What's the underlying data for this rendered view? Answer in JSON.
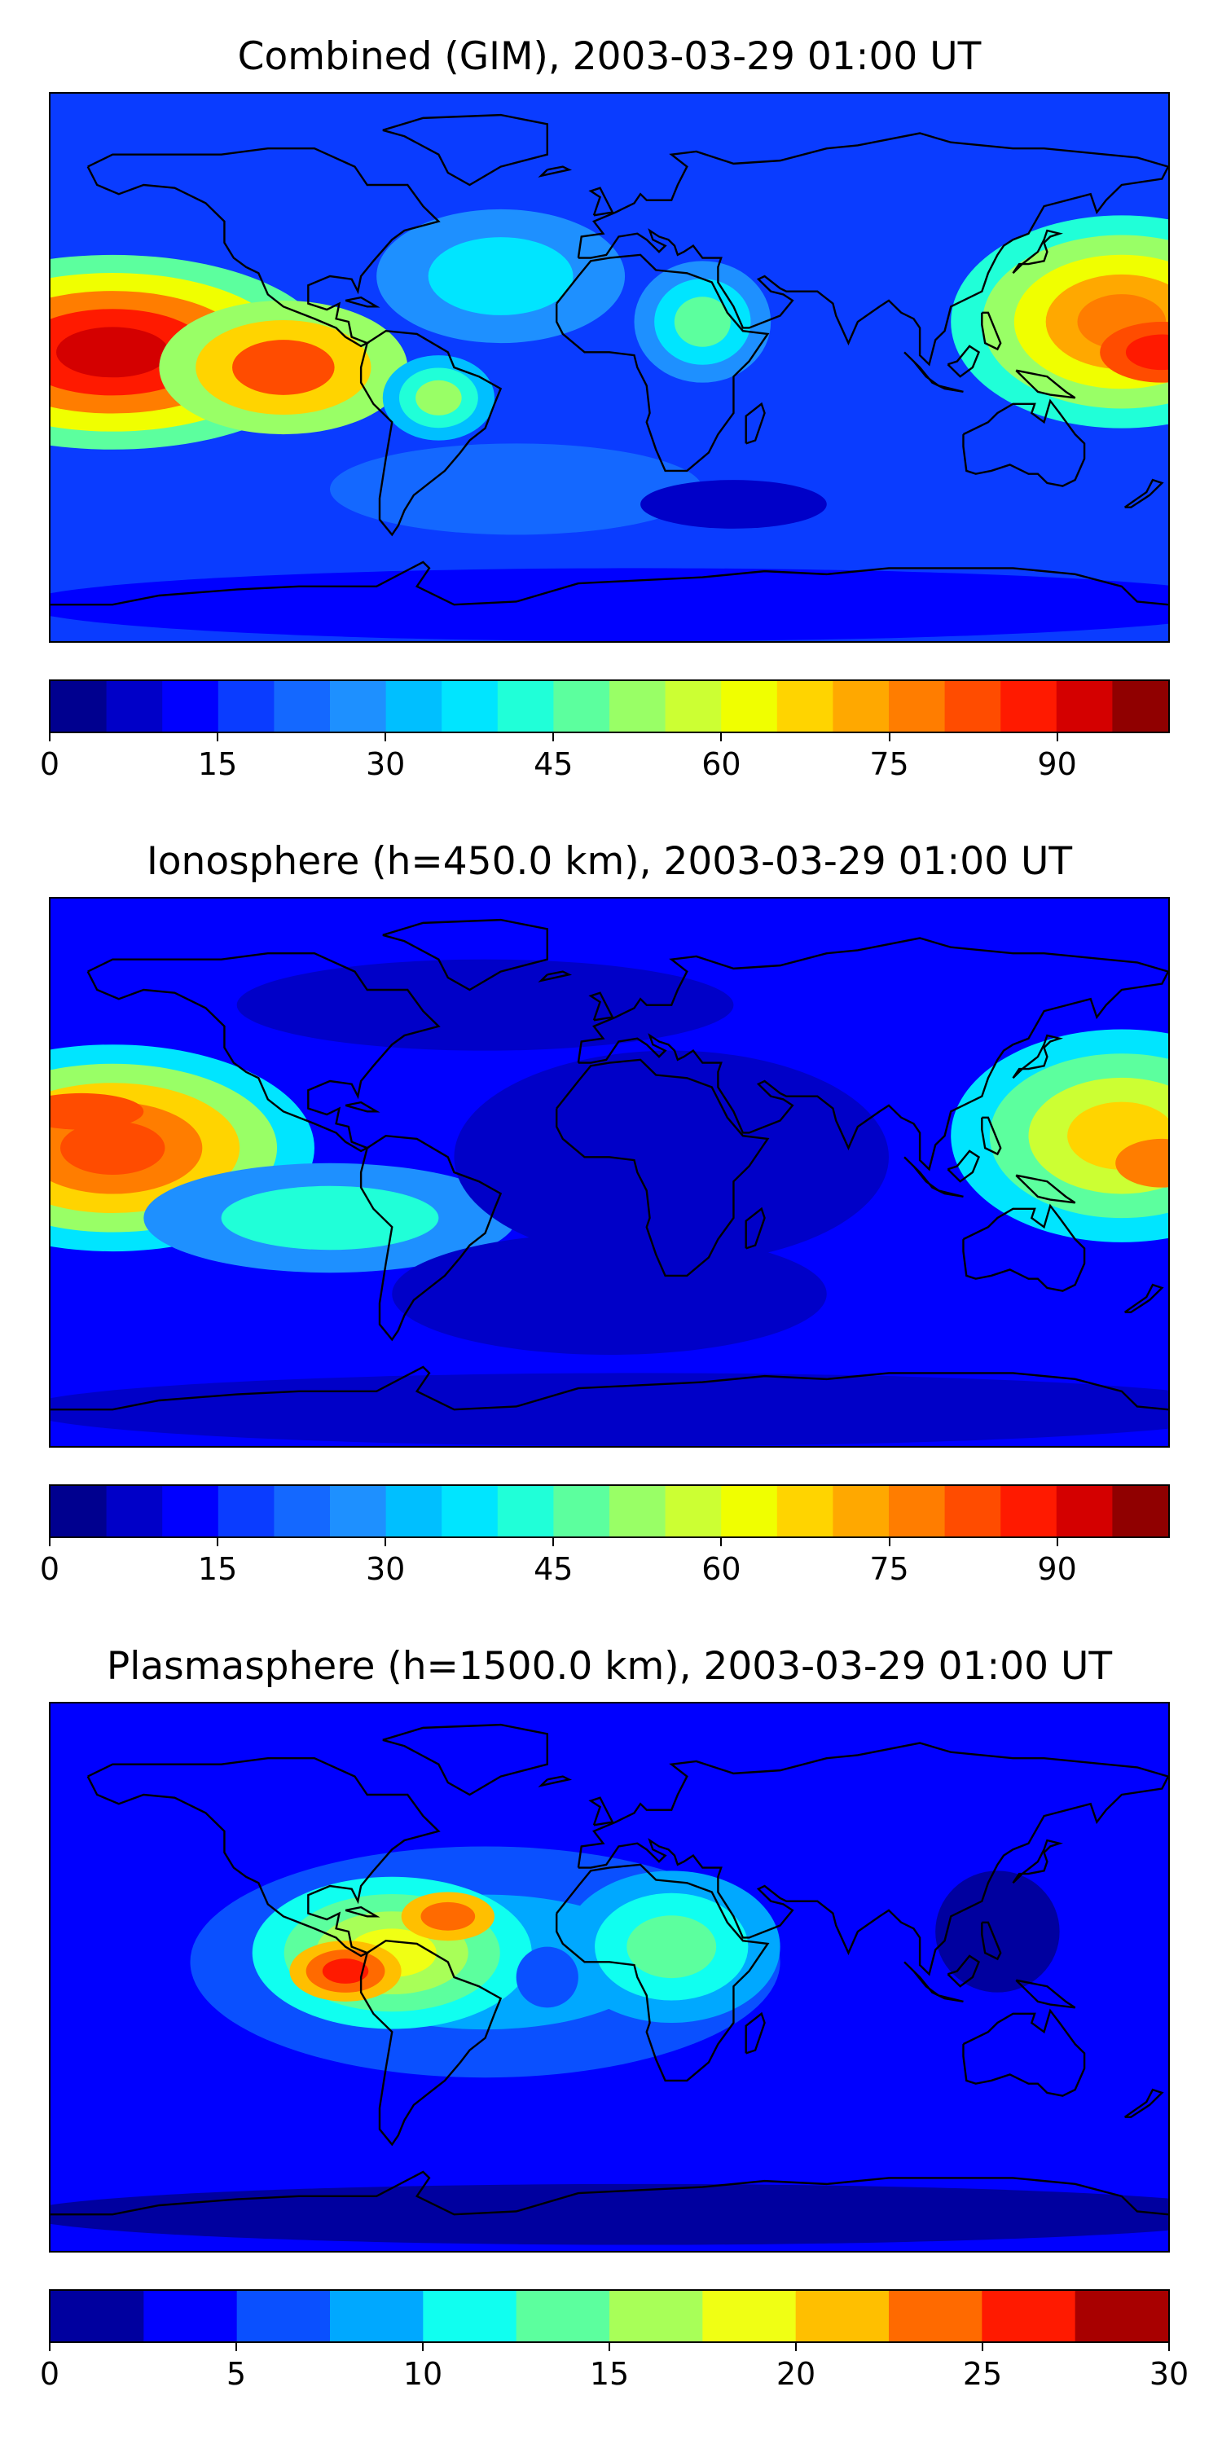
{
  "panels": [
    {
      "title": "Combined (GIM), 2003-03-29 01:00 UT",
      "colorbar": {
        "min": 0,
        "max": 100,
        "levels": 20,
        "ticks": [
          "0",
          "15",
          "30",
          "45",
          "60",
          "75",
          "90"
        ],
        "tick_values": [
          0,
          15,
          30,
          45,
          60,
          75,
          90
        ]
      },
      "background_level": 3,
      "blobs": [
        {
          "lon": -160,
          "lat": 5,
          "rx": 70,
          "ry": 32,
          "levels": [
            9,
            12,
            15,
            17,
            18
          ]
        },
        {
          "lon": -105,
          "lat": 0,
          "rx": 40,
          "ry": 22,
          "levels": [
            10,
            13,
            16
          ]
        },
        {
          "lon": -55,
          "lat": -10,
          "rx": 18,
          "ry": 14,
          "levels": [
            6,
            8,
            10
          ]
        },
        {
          "lon": -35,
          "lat": 30,
          "rx": 40,
          "ry": 22,
          "levels": [
            5,
            7
          ]
        },
        {
          "lon": 30,
          "lat": 15,
          "rx": 22,
          "ry": 20,
          "levels": [
            5,
            7,
            9
          ]
        },
        {
          "lon": 165,
          "lat": 15,
          "rx": 55,
          "ry": 35,
          "levels": [
            8,
            10,
            12,
            14,
            15
          ]
        },
        {
          "lon": 178,
          "lat": 5,
          "rx": 20,
          "ry": 10,
          "levels": [
            16,
            17
          ]
        },
        {
          "lon": -30,
          "lat": -40,
          "rx": 60,
          "ry": 15,
          "levels": [
            4
          ]
        },
        {
          "lon": 40,
          "lat": -45,
          "rx": 30,
          "ry": 8,
          "levels": [
            1
          ]
        },
        {
          "lon": 10,
          "lat": -78,
          "rx": 200,
          "ry": 12,
          "levels": [
            2
          ]
        }
      ]
    },
    {
      "title": "Ionosphere  (h=450.0 km), 2003-03-29 01:00 UT",
      "colorbar": {
        "min": 0,
        "max": 100,
        "levels": 20,
        "ticks": [
          "0",
          "15",
          "30",
          "45",
          "60",
          "75",
          "90"
        ],
        "tick_values": [
          0,
          15,
          30,
          45,
          60,
          75,
          90
        ]
      },
      "background_level": 2,
      "blobs": [
        {
          "lon": -160,
          "lat": 8,
          "rx": 65,
          "ry": 34,
          "levels": [
            7,
            10,
            13,
            15,
            16
          ]
        },
        {
          "lon": -170,
          "lat": 20,
          "rx": 20,
          "ry": 6,
          "levels": [
            16
          ]
        },
        {
          "lon": -90,
          "lat": -15,
          "rx": 60,
          "ry": 18,
          "levels": [
            5,
            8
          ]
        },
        {
          "lon": 20,
          "lat": 5,
          "rx": 70,
          "ry": 35,
          "levels": [
            1
          ]
        },
        {
          "lon": 0,
          "lat": -40,
          "rx": 70,
          "ry": 20,
          "levels": [
            1
          ]
        },
        {
          "lon": 165,
          "lat": 12,
          "rx": 55,
          "ry": 35,
          "levels": [
            7,
            9,
            11,
            13
          ]
        },
        {
          "lon": 178,
          "lat": 3,
          "rx": 15,
          "ry": 8,
          "levels": [
            15
          ]
        },
        {
          "lon": -40,
          "lat": 55,
          "rx": 80,
          "ry": 15,
          "levels": [
            1
          ]
        },
        {
          "lon": 10,
          "lat": -78,
          "rx": 200,
          "ry": 12,
          "levels": [
            1
          ]
        }
      ]
    },
    {
      "title": "Plasmasphere (h=1500.0 km), 2003-03-29 01:00 UT",
      "colorbar": {
        "min": 0,
        "max": 30,
        "levels": 12,
        "ticks": [
          "0",
          "5",
          "10",
          "15",
          "20",
          "25",
          "30"
        ],
        "tick_values": [
          0,
          5,
          10,
          15,
          20,
          25,
          30
        ]
      },
      "background_level": 1,
      "blobs": [
        {
          "lon": -40,
          "lat": 5,
          "rx": 95,
          "ry": 38,
          "levels": [
            2,
            3
          ]
        },
        {
          "lon": -70,
          "lat": 8,
          "rx": 45,
          "ry": 25,
          "levels": [
            4,
            5,
            6,
            7
          ]
        },
        {
          "lon": -85,
          "lat": 2,
          "rx": 18,
          "ry": 10,
          "levels": [
            8,
            9,
            10
          ]
        },
        {
          "lon": -52,
          "lat": 20,
          "rx": 15,
          "ry": 8,
          "levels": [
            8,
            9
          ]
        },
        {
          "lon": 20,
          "lat": 10,
          "rx": 35,
          "ry": 25,
          "levels": [
            3,
            4,
            5
          ]
        },
        {
          "lon": -20,
          "lat": 0,
          "rx": 10,
          "ry": 10,
          "levels": [
            2
          ]
        },
        {
          "lon": 125,
          "lat": 15,
          "rx": 20,
          "ry": 20,
          "levels": [
            0
          ]
        },
        {
          "lon": 10,
          "lat": -78,
          "rx": 200,
          "ry": 10,
          "levels": [
            0
          ]
        }
      ]
    }
  ],
  "colormap": [
    "#00008f",
    "#0000c8",
    "#0000ff",
    "#0a3cff",
    "#1468ff",
    "#1e90ff",
    "#00bfff",
    "#00e5ff",
    "#20ffd8",
    "#5cff9e",
    "#99ff66",
    "#ccff33",
    "#f0ff00",
    "#ffd400",
    "#ffa800",
    "#ff7d00",
    "#ff4c00",
    "#ff1a00",
    "#d40000",
    "#900000"
  ],
  "colormap_12": [
    "#00009f",
    "#0000ff",
    "#0a50ff",
    "#00a8ff",
    "#10fff0",
    "#5cff9e",
    "#a8ff58",
    "#f0ff14",
    "#ffbf00",
    "#ff6a00",
    "#ff1a00",
    "#a80000"
  ]
}
